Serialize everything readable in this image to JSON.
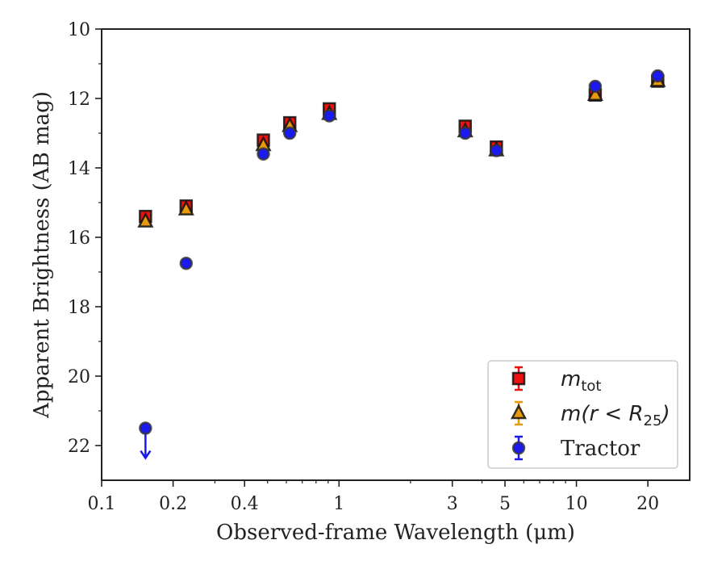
{
  "chart_data": {
    "type": "scatter",
    "xlabel": "Observed-frame Wavelength (μm)",
    "ylabel": "Apparent Brightness (AB mag)",
    "xscale": "log",
    "xlim": [
      0.1,
      30
    ],
    "ylim": [
      23,
      10
    ],
    "y_inverted": true,
    "x_ticks": [
      0.1,
      0.2,
      0.4,
      1,
      3,
      5,
      10,
      20
    ],
    "x_tick_labels": [
      "0.1",
      "0.2",
      "0.4",
      "1",
      "3",
      "5",
      "10",
      "20"
    ],
    "y_ticks": [
      10,
      12,
      14,
      16,
      18,
      20,
      22
    ],
    "y_tick_labels": [
      "10",
      "12",
      "14",
      "16",
      "18",
      "20",
      "22"
    ],
    "legend_position": "lower-right",
    "series": [
      {
        "name": "m_tot",
        "legend_label": "m",
        "legend_sub": "tot",
        "marker": "square",
        "color": "#ee1111",
        "x": [
          0.153,
          0.227,
          0.48,
          0.62,
          0.91,
          3.4,
          4.6,
          12.0,
          22.0
        ],
        "y": [
          15.4,
          15.1,
          13.2,
          12.7,
          12.3,
          12.8,
          13.4,
          11.9,
          11.5
        ]
      },
      {
        "name": "m(r < R25)",
        "legend_label": "m(r < R",
        "legend_sub": "25",
        "legend_close": ")",
        "marker": "triangle",
        "color": "#e89a0c",
        "x": [
          0.153,
          0.227,
          0.48,
          0.62,
          0.91,
          3.4,
          4.6,
          12.0,
          22.0
        ],
        "y": [
          15.55,
          15.2,
          13.35,
          12.8,
          12.45,
          12.95,
          13.5,
          11.9,
          11.5
        ]
      },
      {
        "name": "Tractor",
        "legend_label": "Tractor",
        "marker": "circle",
        "color": "#1a1aee",
        "x": [
          0.153,
          0.227,
          0.48,
          0.62,
          0.91,
          3.4,
          4.6,
          12.0,
          22.0
        ],
        "y": [
          21.5,
          16.75,
          13.6,
          13.0,
          12.5,
          13.0,
          13.5,
          11.65,
          11.35
        ],
        "upper_limit": [
          true,
          false,
          false,
          false,
          false,
          false,
          false,
          false,
          false
        ]
      }
    ]
  }
}
